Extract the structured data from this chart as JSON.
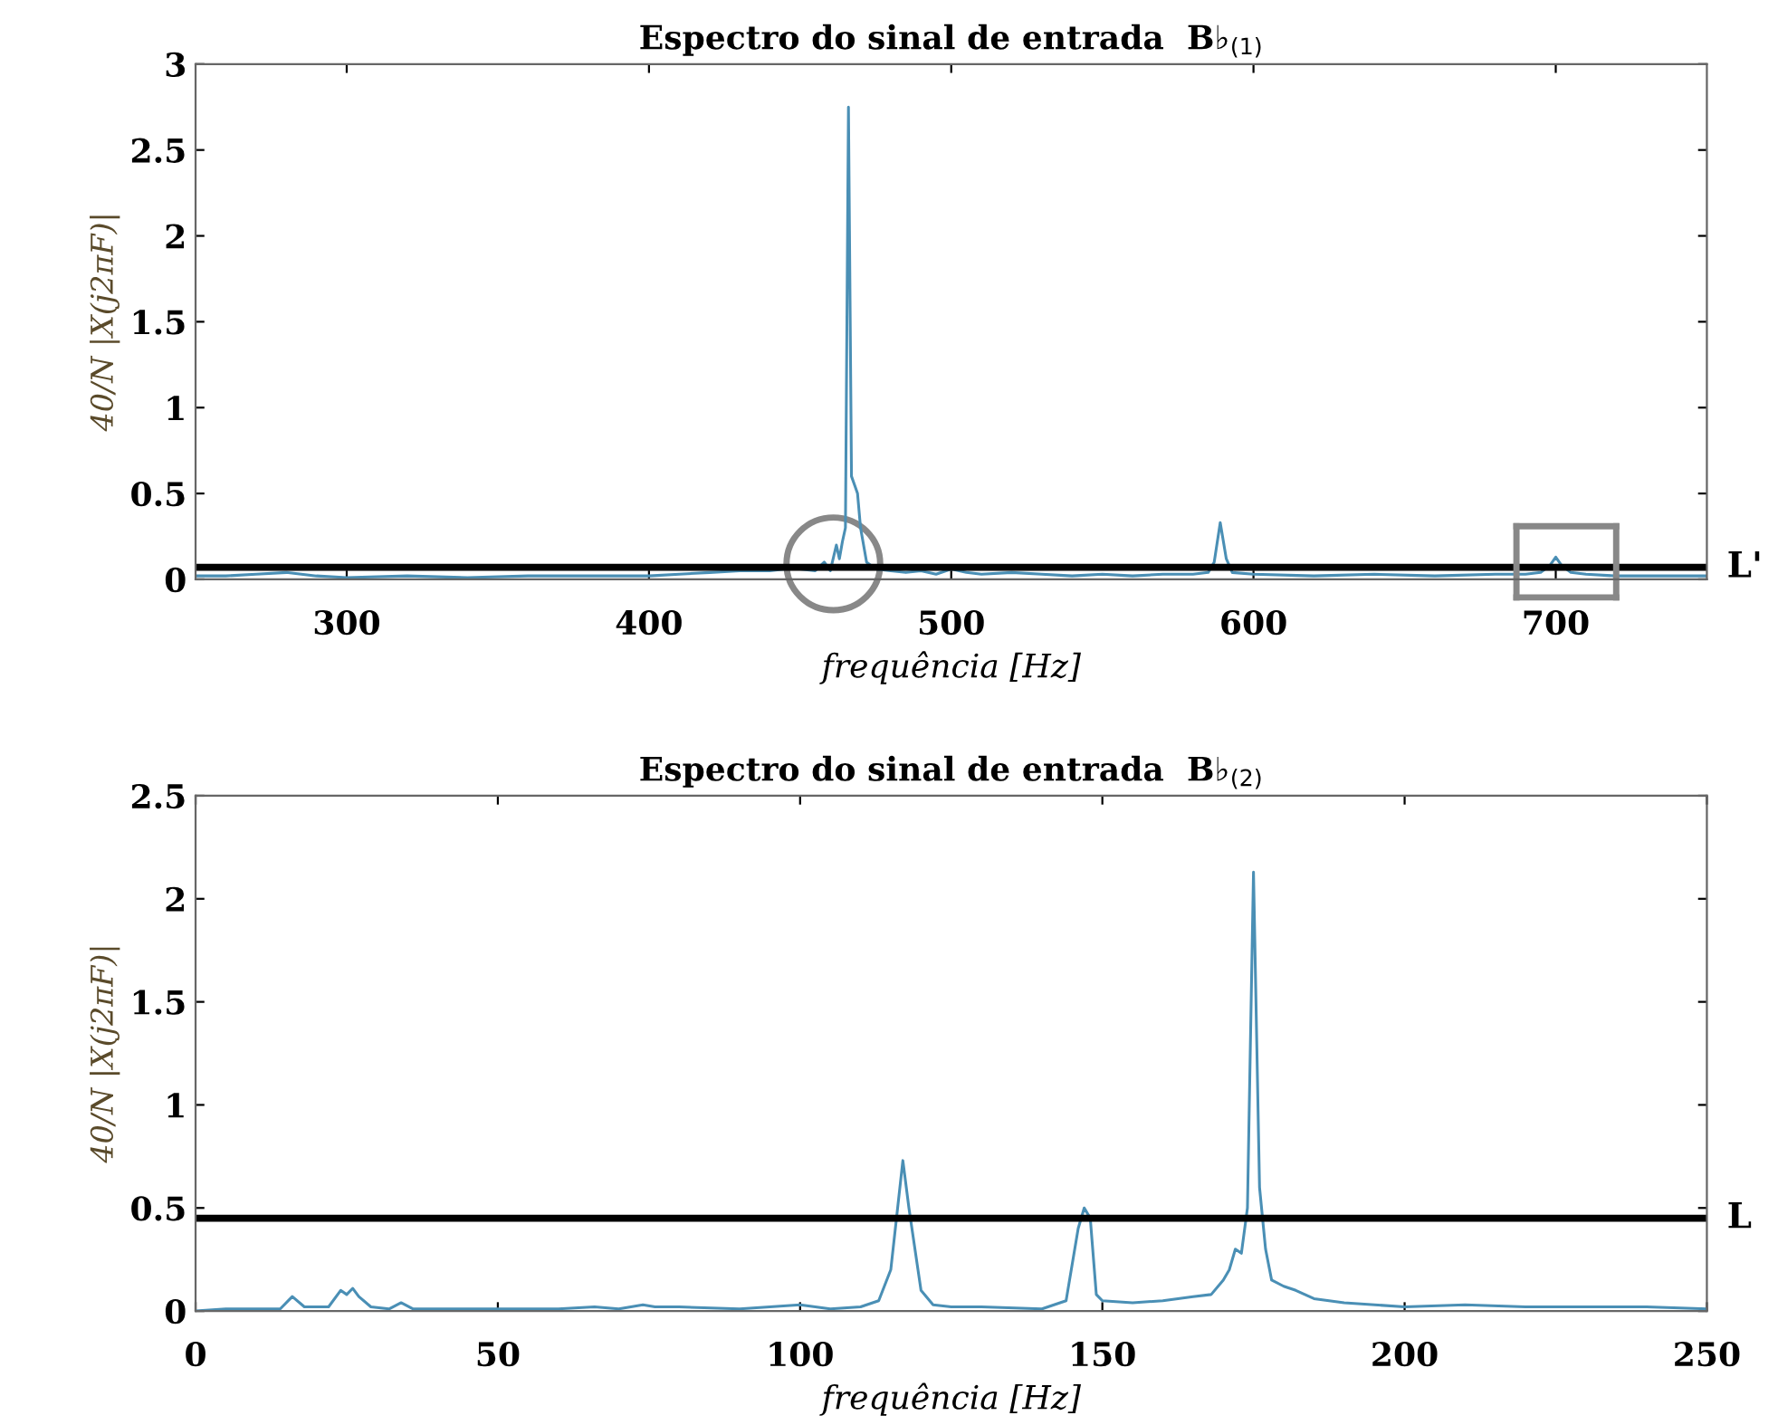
{
  "chart_data": [
    {
      "type": "line",
      "title": "Espectro do sinal de entrada  B♭$_{(1)}$",
      "xlabel": "frequência [Hz]",
      "ylabel": "40/N |X(j2πF)|",
      "xlim": [
        250,
        750
      ],
      "xticks": [
        300,
        400,
        500,
        600,
        700
      ],
      "ylim": [
        0,
        3
      ],
      "yticks": [
        0,
        0.5,
        1,
        1.5,
        2,
        2.5,
        3
      ],
      "grid": false,
      "legend": false,
      "series": [
        {
          "color": "#4a8fb5",
          "x": [
            250,
            260,
            270,
            280,
            290,
            300,
            320,
            340,
            360,
            380,
            400,
            410,
            420,
            430,
            440,
            445,
            450,
            455,
            458,
            460,
            462,
            463,
            464,
            465,
            466,
            467,
            468,
            469,
            470,
            472,
            475,
            480,
            485,
            490,
            495,
            500,
            505,
            510,
            520,
            530,
            540,
            550,
            560,
            570,
            580,
            585,
            587,
            589,
            591,
            593,
            600,
            620,
            640,
            660,
            680,
            690,
            695,
            698,
            700,
            702,
            705,
            710,
            720,
            740,
            750
          ],
          "values": [
            0.02,
            0.02,
            0.03,
            0.04,
            0.02,
            0.01,
            0.02,
            0.01,
            0.02,
            0.02,
            0.02,
            0.03,
            0.04,
            0.05,
            0.05,
            0.06,
            0.06,
            0.05,
            0.1,
            0.05,
            0.2,
            0.12,
            0.22,
            0.3,
            2.75,
            0.6,
            0.55,
            0.5,
            0.3,
            0.1,
            0.06,
            0.05,
            0.04,
            0.05,
            0.03,
            0.06,
            0.04,
            0.03,
            0.04,
            0.03,
            0.02,
            0.03,
            0.02,
            0.03,
            0.03,
            0.04,
            0.1,
            0.33,
            0.12,
            0.04,
            0.03,
            0.02,
            0.03,
            0.02,
            0.03,
            0.03,
            0.04,
            0.08,
            0.13,
            0.08,
            0.04,
            0.03,
            0.02,
            0.02,
            0.02
          ]
        }
      ],
      "ref_lines": [
        {
          "axis": "y",
          "value": 0.07,
          "label": "L'",
          "color": "#000000"
        }
      ]
    },
    {
      "type": "line",
      "title": "Espectro do sinal de entrada  B♭$_{(2)}$",
      "xlabel": "frequência [Hz]",
      "ylabel": "40/N |X(j2πF)|",
      "xlim": [
        0,
        250
      ],
      "xticks": [
        0,
        50,
        100,
        150,
        200,
        250
      ],
      "ylim": [
        0,
        2.5
      ],
      "yticks": [
        0,
        0.5,
        1,
        1.5,
        2,
        2.5
      ],
      "grid": false,
      "legend": false,
      "series": [
        {
          "color": "#4a8fb5",
          "x": [
            0,
            5,
            10,
            14,
            16,
            18,
            22,
            24,
            25,
            26,
            27,
            29,
            32,
            34,
            36,
            40,
            50,
            60,
            66,
            70,
            74,
            76,
            80,
            90,
            100,
            105,
            110,
            113,
            115,
            117,
            118,
            120,
            122,
            125,
            130,
            140,
            144,
            146,
            147,
            148,
            149,
            150,
            155,
            160,
            165,
            168,
            170,
            171,
            172,
            173,
            174,
            175,
            176,
            177,
            178,
            180,
            182,
            185,
            190,
            200,
            210,
            220,
            230,
            240,
            250
          ],
          "values": [
            0,
            0.01,
            0.01,
            0.01,
            0.07,
            0.02,
            0.02,
            0.1,
            0.08,
            0.11,
            0.07,
            0.02,
            0.01,
            0.04,
            0.01,
            0.01,
            0.01,
            0.01,
            0.02,
            0.01,
            0.03,
            0.02,
            0.02,
            0.01,
            0.03,
            0.01,
            0.02,
            0.05,
            0.2,
            0.73,
            0.5,
            0.1,
            0.03,
            0.02,
            0.02,
            0.01,
            0.05,
            0.4,
            0.5,
            0.45,
            0.08,
            0.05,
            0.04,
            0.05,
            0.07,
            0.08,
            0.15,
            0.2,
            0.3,
            0.28,
            0.5,
            2.13,
            0.6,
            0.3,
            0.15,
            0.12,
            0.1,
            0.06,
            0.04,
            0.02,
            0.03,
            0.02,
            0.02,
            0.02,
            0.01
          ]
        }
      ],
      "ref_lines": [
        {
          "axis": "y",
          "value": 0.45,
          "label": "L",
          "color": "#000000"
        }
      ]
    }
  ]
}
